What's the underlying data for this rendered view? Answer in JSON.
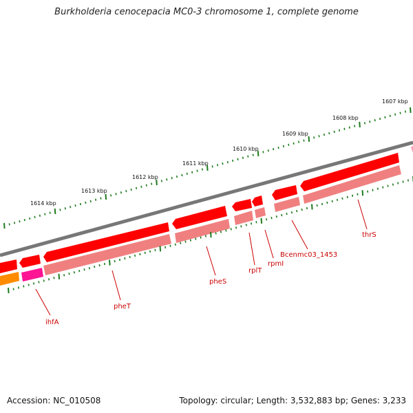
{
  "title": "Burkholderia cenocepacia MC0-3 chromosome 1, complete genome",
  "accession": "Accession: NC_010508",
  "summary": "Topology: circular; Length: 3,532,883 bp; Genes: 3,233",
  "colors": {
    "backbone": "#808080",
    "cds_forward": "#ff0000",
    "cds_reverse": "#f08080",
    "tick": "#1e7b1e",
    "gene_label": "#cc0000",
    "orange_feature": "#ff8c00",
    "magenta_feature": "#ff1493"
  },
  "scale": {
    "unit": "kbp",
    "labels": [
      "1607 kbp",
      "1608 kbp",
      "1609 kbp",
      "1610 kbp",
      "1611 kbp",
      "1612 kbp",
      "1613 kbp",
      "1614 kbp"
    ]
  },
  "genes": [
    "thrS",
    "Bcenmc03_1453",
    "rpmI",
    "rplT",
    "pheS",
    "pheT",
    "ihfA"
  ]
}
